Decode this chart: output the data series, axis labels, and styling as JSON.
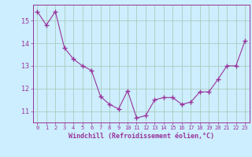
{
  "x": [
    0,
    1,
    2,
    3,
    4,
    5,
    6,
    7,
    8,
    9,
    10,
    11,
    12,
    13,
    14,
    15,
    16,
    17,
    18,
    19,
    20,
    21,
    22,
    23
  ],
  "y": [
    15.4,
    14.8,
    15.4,
    13.8,
    13.3,
    13.0,
    12.8,
    11.65,
    11.3,
    11.1,
    11.9,
    10.7,
    10.8,
    11.5,
    11.6,
    11.6,
    11.3,
    11.4,
    11.85,
    11.85,
    12.4,
    13.0,
    13.0,
    14.1
  ],
  "ylim": [
    10.5,
    15.7
  ],
  "yticks": [
    11,
    12,
    13,
    14,
    15
  ],
  "xticks": [
    0,
    1,
    2,
    3,
    4,
    5,
    6,
    7,
    8,
    9,
    10,
    11,
    12,
    13,
    14,
    15,
    16,
    17,
    18,
    19,
    20,
    21,
    22,
    23
  ],
  "line_color": "#993399",
  "marker": "+",
  "bg_color": "#cceeff",
  "grid_color": "#aaccbb",
  "xlabel": "Windchill (Refroidissement éolien,°C)"
}
